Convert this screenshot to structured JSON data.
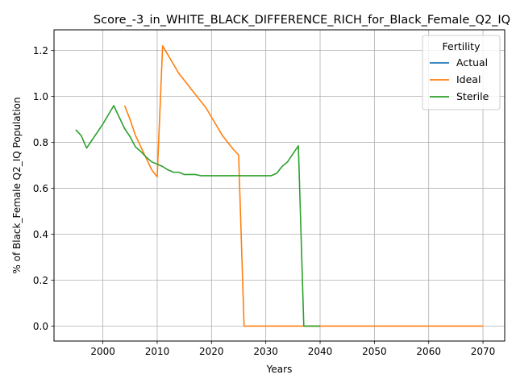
{
  "chart_data": {
    "type": "line",
    "title": "Score_-3_in_WHITE_BLACK_DIFFERENCE_RICH_for_Black_Female_Q2_IQ",
    "xlabel": "Years",
    "ylabel": "% of Black_Female Q2_IQ Population",
    "xlim": [
      1991,
      2074
    ],
    "ylim": [
      -0.065,
      1.29
    ],
    "xticks": [
      2000,
      2010,
      2020,
      2030,
      2040,
      2050,
      2060,
      2070
    ],
    "yticks": [
      0.0,
      0.2,
      0.4,
      0.6,
      0.8,
      1.0,
      1.2
    ],
    "grid": true,
    "legend": {
      "title": "Fertility",
      "position": "top-right"
    },
    "series": [
      {
        "name": "Actual",
        "color": "#1f77b4",
        "x": [],
        "y": []
      },
      {
        "name": "Ideal",
        "color": "#ff7f0e",
        "x": [
          2004,
          2005,
          2006,
          2007,
          2008,
          2009,
          2010,
          2011,
          2012,
          2013,
          2014,
          2015,
          2016,
          2017,
          2018,
          2019,
          2020,
          2021,
          2022,
          2023,
          2024,
          2025,
          2026,
          2027,
          2028,
          2029,
          2030,
          2031,
          2032,
          2033,
          2035,
          2040,
          2045,
          2050,
          2055,
          2060,
          2065,
          2070
        ],
        "y": [
          0.96,
          0.9,
          0.83,
          0.78,
          0.73,
          0.68,
          0.65,
          1.22,
          1.18,
          1.14,
          1.1,
          1.07,
          1.04,
          1.01,
          0.98,
          0.95,
          0.91,
          0.87,
          0.83,
          0.8,
          0.77,
          0.745,
          0.0,
          0.0,
          0.0,
          0.0,
          0.0,
          0.0,
          0.0,
          0.0,
          0.0,
          0.0,
          0.0,
          0.0,
          0.0,
          0.0,
          0.0,
          0.0
        ]
      },
      {
        "name": "Sterile",
        "color": "#2ca02c",
        "x": [
          1995,
          1996,
          1997,
          1998,
          1999,
          2000,
          2001,
          2002,
          2003,
          2004,
          2005,
          2006,
          2007,
          2008,
          2009,
          2010,
          2011,
          2012,
          2013,
          2014,
          2015,
          2016,
          2017,
          2018,
          2019,
          2020,
          2021,
          2022,
          2023,
          2024,
          2025,
          2026,
          2027,
          2028,
          2029,
          2030,
          2031,
          2032,
          2033,
          2034,
          2035,
          2036,
          2037,
          2038,
          2039,
          2040
        ],
        "y": [
          0.855,
          0.83,
          0.775,
          0.81,
          0.845,
          0.88,
          0.92,
          0.96,
          0.91,
          0.86,
          0.825,
          0.78,
          0.76,
          0.735,
          0.715,
          0.705,
          0.695,
          0.68,
          0.67,
          0.67,
          0.66,
          0.66,
          0.66,
          0.655,
          0.655,
          0.655,
          0.655,
          0.655,
          0.655,
          0.655,
          0.655,
          0.655,
          0.655,
          0.655,
          0.655,
          0.655,
          0.655,
          0.665,
          0.695,
          0.715,
          0.75,
          0.785,
          0.0,
          0.0,
          0.0,
          0.0
        ]
      }
    ]
  }
}
